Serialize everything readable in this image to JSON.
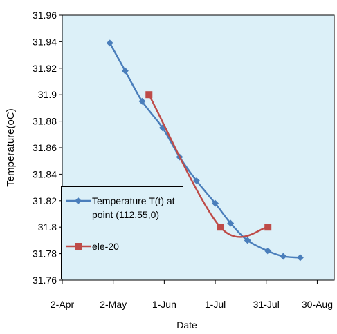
{
  "chart_data": {
    "type": "line",
    "x_label": "Date",
    "y_label": "Temperature(oC)",
    "xlim": [
      92,
      252
    ],
    "ylim": [
      31.76,
      31.96
    ],
    "xticks": [
      {
        "value": 92,
        "label": "2-Apr"
      },
      {
        "value": 122,
        "label": "2-May"
      },
      {
        "value": 152,
        "label": "1-Jun"
      },
      {
        "value": 182,
        "label": "1-Jul"
      },
      {
        "value": 212,
        "label": "31-Jul"
      },
      {
        "value": 242,
        "label": "30-Aug"
      }
    ],
    "yticks": [
      31.76,
      31.78,
      31.8,
      31.82,
      31.84,
      31.86,
      31.88,
      31.9,
      31.92,
      31.94,
      31.96
    ],
    "grid": false,
    "smooth": true,
    "legend": "lower left",
    "series": [
      {
        "name": "Temperature T(t) at point (112.55,0)",
        "color": "#4a7ebb",
        "marker": "diamond",
        "x": [
          120,
          129,
          139,
          151,
          161,
          171,
          182,
          191,
          201,
          213,
          222,
          232
        ],
        "values": [
          31.939,
          31.918,
          31.895,
          31.875,
          31.853,
          31.835,
          31.818,
          31.803,
          31.79,
          31.782,
          31.778,
          31.777
        ]
      },
      {
        "name": "ele-20",
        "color": "#be4b48",
        "marker": "square",
        "x": [
          143,
          185,
          213
        ],
        "values": [
          31.9,
          31.8,
          31.8
        ]
      }
    ]
  }
}
